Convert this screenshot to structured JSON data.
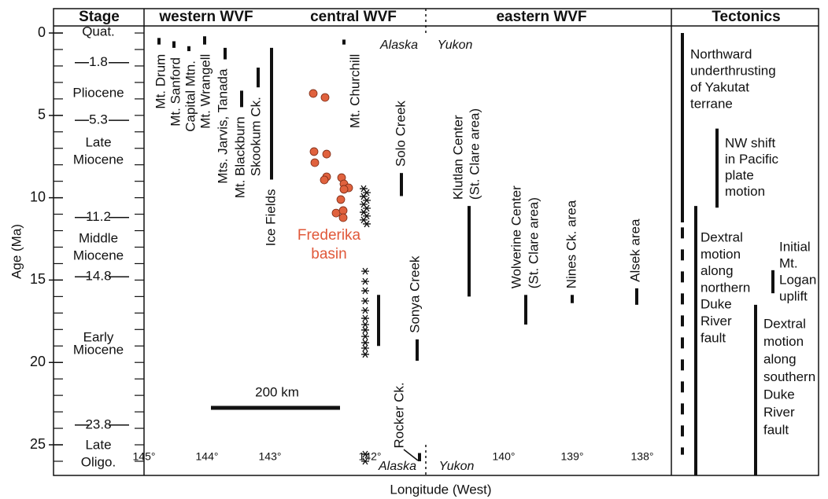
{
  "header": {
    "stage": "Stage",
    "western": "western WVF",
    "central": "central WVF",
    "eastern": "eastern WVF",
    "tectonics": "Tectonics"
  },
  "y_axis": {
    "label": "Age (Ma)",
    "lim": [
      -0.43,
      26.86
    ],
    "ticks": [
      0,
      5,
      10,
      15,
      20,
      25
    ],
    "minor_ticks": [
      0,
      1,
      2,
      3,
      4,
      5,
      6,
      7,
      8,
      9,
      10,
      11,
      12,
      13,
      14,
      15,
      16,
      17,
      18,
      19,
      20,
      21,
      22,
      23,
      24,
      25,
      26
    ]
  },
  "x_axis": {
    "label": "Longitude (West)",
    "ticks": [
      {
        "value": 145,
        "label": "145°"
      },
      {
        "value": 144,
        "label": "144°"
      },
      {
        "value": 143,
        "label": "143°"
      },
      {
        "value": 142,
        "label": "142°"
      },
      {
        "value": 140,
        "label": "140°"
      },
      {
        "value": 139,
        "label": "139°"
      },
      {
        "value": 138,
        "label": "138°"
      }
    ]
  },
  "stages": [
    {
      "lines": [
        "Quat."
      ]
    },
    {
      "lines": [
        "Pliocene"
      ]
    },
    {
      "lines": [
        "Late",
        "Miocene"
      ]
    },
    {
      "lines": [
        "Middle",
        "Miocene"
      ]
    },
    {
      "lines": [
        "Early",
        "Miocene"
      ]
    },
    {
      "lines": [
        "Late",
        "Oligo."
      ]
    }
  ],
  "stage_boundaries": [
    1.8,
    5.3,
    11.2,
    14.8,
    23.8
  ],
  "centers": [
    {
      "lines": [
        "Mt. Drum"
      ],
      "age": [
        0.3,
        0.7
      ]
    },
    {
      "lines": [
        "Mt. Sanford"
      ],
      "age": [
        0.5,
        0.9
      ]
    },
    {
      "lines": [
        "Capital Mtn."
      ],
      "age": [
        0.8,
        1.1
      ]
    },
    {
      "lines": [
        "Mt. Wrangell"
      ],
      "age": [
        0.2,
        0.7
      ]
    },
    {
      "lines": [
        "Mts. Jarvis, Tanada"
      ],
      "age": [
        0.9,
        1.6
      ]
    },
    {
      "lines": [
        "Mt. Blackburn"
      ],
      "age": [
        3.5,
        4.5
      ]
    },
    {
      "lines": [
        "Skookum Ck."
      ],
      "age": [
        2.1,
        3.3
      ]
    },
    {
      "lines": [
        "Ice Fields"
      ],
      "age": [
        0.9,
        8.9
      ]
    },
    {
      "lines": [
        "Mt. Churchill"
      ],
      "age": [
        0.4,
        0.7
      ]
    },
    {
      "lines": [
        "Solo Creek"
      ],
      "age": [
        8.5,
        9.9
      ]
    },
    {
      "lines": [
        "Sonya Creek"
      ],
      "age": [
        18.6,
        19.9
      ]
    },
    {
      "lines": null,
      "age": [
        15.9,
        19.0
      ]
    },
    {
      "lines": [
        "Rocker Ck."
      ],
      "age": [
        25.5,
        26.0
      ]
    },
    {
      "lines": [
        "Klutlan Center",
        "(St. Clare area)"
      ],
      "age": [
        10.5,
        16.0
      ]
    },
    {
      "lines": [
        "Wolverine Center",
        "(St. Clare area)"
      ],
      "age": [
        15.9,
        17.7
      ]
    },
    {
      "lines": [
        "Nines Ck. area"
      ],
      "age": [
        15.9,
        16.4
      ]
    },
    {
      "lines": [
        "Alsek area"
      ],
      "age": [
        15.5,
        16.5
      ]
    }
  ],
  "frederika": {
    "lines": [
      "Frederika",
      "basin"
    ],
    "ages": [
      3.67,
      3.91,
      7.2,
      7.35,
      7.87,
      8.73,
      8.92,
      8.78,
      9.16,
      9.4,
      9.49,
      10.11,
      10.93,
      10.78,
      11.21
    ]
  },
  "asterisk_ages": [
    9.45,
    9.69,
    9.92,
    10.16,
    10.4,
    10.64,
    10.88,
    11.11,
    11.35,
    11.59,
    14.46,
    15.08,
    15.65,
    16.27,
    16.84,
    17.32,
    17.7,
    18.03,
    18.42,
    18.8,
    19.13,
    19.51,
    25.57,
    26.0
  ],
  "region_labels": {
    "top": [
      "Alaska",
      "Yukon"
    ],
    "bottom": [
      "Alaska",
      "Yukon"
    ]
  },
  "scale_bar": "200 km",
  "tectonics": [
    {
      "lines": [
        "Northward",
        "underthrusting",
        "of Yakutat",
        "terrane"
      ],
      "age": [
        0,
        11.5
      ],
      "dashed_age": [
        11.8,
        25.6
      ]
    },
    {
      "lines": [
        "NW shift",
        "in Pacific",
        "plate",
        "motion"
      ],
      "age": [
        5.8,
        10.6
      ]
    },
    {
      "lines": [
        "Dextral",
        "motion",
        "along",
        "northern",
        "Duke",
        "River",
        "fault"
      ],
      "age": [
        10.5,
        26.86
      ]
    },
    {
      "lines": [
        "Initial",
        "Mt.",
        "Logan",
        "uplift"
      ],
      "age": [
        14.4,
        15.8
      ]
    },
    {
      "lines": [
        "Dextral",
        "motion",
        "along",
        "southern",
        "Duke",
        "River",
        "fault"
      ],
      "age": [
        16.5,
        26.86
      ]
    }
  ]
}
